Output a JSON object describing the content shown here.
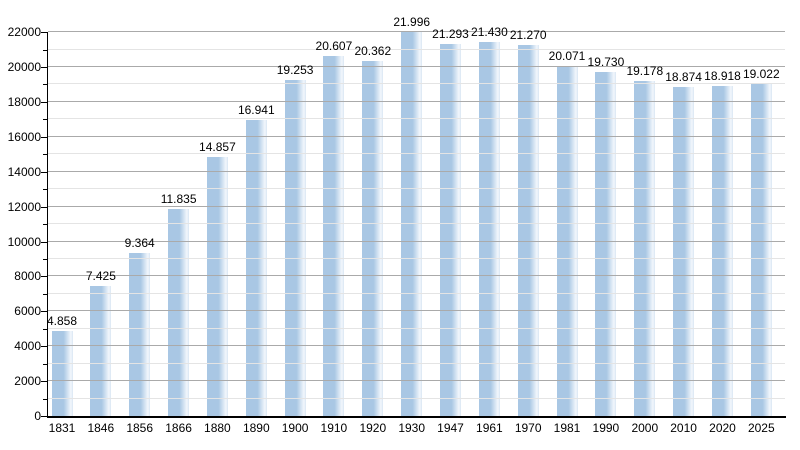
{
  "chart_data": {
    "type": "bar",
    "title": "",
    "xlabel": "",
    "ylabel": "",
    "categories": [
      "1831",
      "1846",
      "1856",
      "1866",
      "1880",
      "1890",
      "1900",
      "1910",
      "1920",
      "1930",
      "1947",
      "1961",
      "1970",
      "1981",
      "1990",
      "2000",
      "2010",
      "2020",
      "2025"
    ],
    "values": [
      4858,
      7425,
      9364,
      11835,
      14857,
      16941,
      19253,
      20607,
      20362,
      21996,
      21293,
      21430,
      21270,
      20071,
      19730,
      19178,
      18874,
      18918,
      19022
    ],
    "value_labels": [
      "4.858",
      "7.425",
      "9.364",
      "11.835",
      "14.857",
      "16.941",
      "19.253",
      "20.607",
      "20.362",
      "21.996",
      "21.293",
      "21.430",
      "21.270",
      "20.071",
      "19.730",
      "19.178",
      "18.874",
      "18.918",
      "19.022"
    ],
    "ylim": [
      0,
      22000
    ],
    "y_major_step": 2000,
    "y_minor_step": 1000,
    "y_tick_labels": [
      "0",
      "2000",
      "4000",
      "6000",
      "8000",
      "10000",
      "12000",
      "14000",
      "16000",
      "18000",
      "20000",
      "22000"
    ],
    "grid": true,
    "legend": "none",
    "colors": {
      "background": "#ffffff",
      "bar_fill": "#a9c7e4",
      "bar_fill_light": "#f2f7fc",
      "bar_fill_edge": "#d9e6f3",
      "grid_major": "#aaaaaa",
      "grid_minor": "#e4e4e4",
      "axis": "#000000",
      "text": "#000000"
    }
  }
}
